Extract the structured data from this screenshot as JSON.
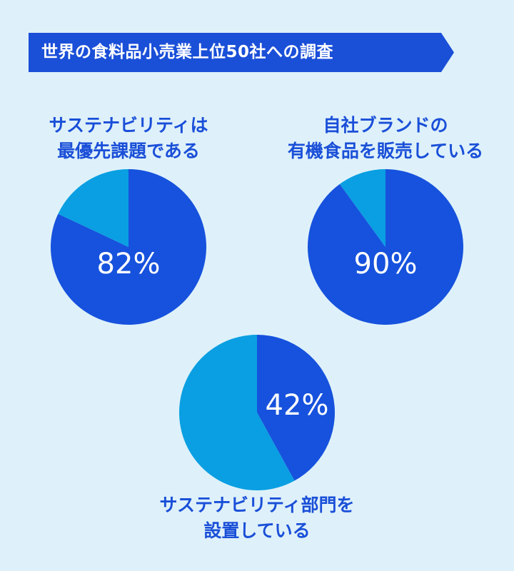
{
  "banner": {
    "title": "世界の食料品小売業上位50社への調査"
  },
  "colors": {
    "primary": "#1652dd",
    "secondary": "#0a9fe2",
    "text": "#1a4fd8",
    "label": "#ffffff",
    "banner": "#1a4fd8"
  },
  "chart_data": [
    {
      "type": "pie",
      "title_lines": [
        "サステナビリティは",
        "最優先課題である"
      ],
      "label": "82%",
      "values": [
        82,
        18
      ]
    },
    {
      "type": "pie",
      "title_lines": [
        "自社ブランドの",
        "有機食品を販売している"
      ],
      "label": "90%",
      "values": [
        90,
        10
      ]
    },
    {
      "type": "pie",
      "title_lines": [
        "サステナビリティ部門を",
        "設置している"
      ],
      "label": "42%",
      "values": [
        42,
        58
      ]
    }
  ]
}
